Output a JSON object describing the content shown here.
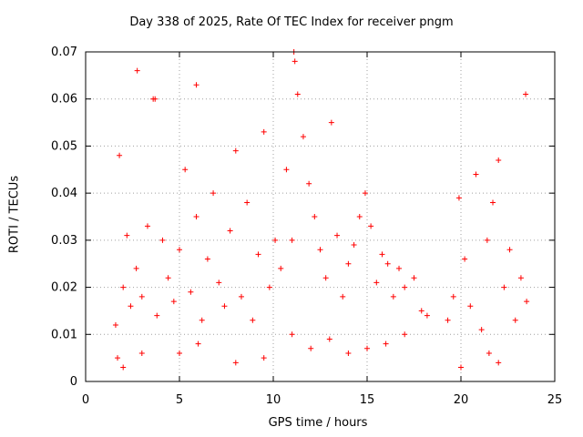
{
  "chart_data": {
    "type": "scatter",
    "title": "Day 338 of 2025, Rate Of TEC Index for receiver pngm",
    "xlabel": "GPS time / hours",
    "ylabel": "ROTI / TECUs",
    "xlim": [
      0,
      25
    ],
    "ylim": [
      0,
      0.07
    ],
    "x_ticks": [
      "0",
      "5",
      "10",
      "15",
      "20",
      "25"
    ],
    "y_ticks": [
      "0",
      "0.01",
      "0.02",
      "0.03",
      "0.04",
      "0.05",
      "0.06",
      "0.07"
    ],
    "grid": true,
    "marker": "+",
    "color": "#ff0000",
    "series": [
      {
        "name": "ROTI",
        "x": [
          1.6,
          1.8,
          2.0,
          2.2,
          2.4,
          2.7,
          3.0,
          3.3,
          3.6,
          3.8,
          4.1,
          4.4,
          4.7,
          5.0,
          5.3,
          5.6,
          5.9,
          6.2,
          6.5,
          6.8,
          7.1,
          7.4,
          7.7,
          8.0,
          8.3,
          8.6,
          8.9,
          9.2,
          9.5,
          9.8,
          10.1,
          10.4,
          10.7,
          11.0,
          11.3,
          11.6,
          11.9,
          12.2,
          12.5,
          12.8,
          13.1,
          13.4,
          13.7,
          14.0,
          14.3,
          14.6,
          14.9,
          15.2,
          15.5,
          15.8,
          16.1,
          16.4,
          16.7,
          17.0,
          17.5,
          17.9,
          18.2,
          19.3,
          19.6,
          19.9,
          20.2,
          20.5,
          20.8,
          21.1,
          21.4,
          21.7,
          22.0,
          22.3,
          22.6,
          22.9,
          23.2,
          23.5,
          2.75,
          3.7,
          5.9,
          11.1,
          11.15,
          23.45,
          1.7,
          2.0,
          3.0,
          5.0,
          6.0,
          8.0,
          9.5,
          11.0,
          12.0,
          13.0,
          14.0,
          15.0,
          16.0,
          17.0,
          20.0,
          21.5,
          22.0
        ],
        "y": [
          0.012,
          0.048,
          0.02,
          0.031,
          0.016,
          0.024,
          0.018,
          0.033,
          0.06,
          0.014,
          0.03,
          0.022,
          0.017,
          0.028,
          0.045,
          0.019,
          0.035,
          0.013,
          0.026,
          0.04,
          0.021,
          0.016,
          0.032,
          0.049,
          0.018,
          0.038,
          0.013,
          0.027,
          0.053,
          0.02,
          0.03,
          0.024,
          0.045,
          0.03,
          0.061,
          0.052,
          0.042,
          0.035,
          0.028,
          0.022,
          0.055,
          0.031,
          0.018,
          0.025,
          0.029,
          0.035,
          0.04,
          0.033,
          0.021,
          0.027,
          0.025,
          0.018,
          0.024,
          0.02,
          0.022,
          0.015,
          0.014,
          0.013,
          0.018,
          0.039,
          0.026,
          0.016,
          0.044,
          0.011,
          0.03,
          0.038,
          0.047,
          0.02,
          0.028,
          0.013,
          0.022,
          0.017,
          0.066,
          0.06,
          0.063,
          0.07,
          0.068,
          0.061,
          0.005,
          0.003,
          0.006,
          0.006,
          0.008,
          0.004,
          0.005,
          0.01,
          0.007,
          0.009,
          0.006,
          0.007,
          0.008,
          0.01,
          0.003,
          0.006,
          0.004
        ]
      }
    ]
  }
}
